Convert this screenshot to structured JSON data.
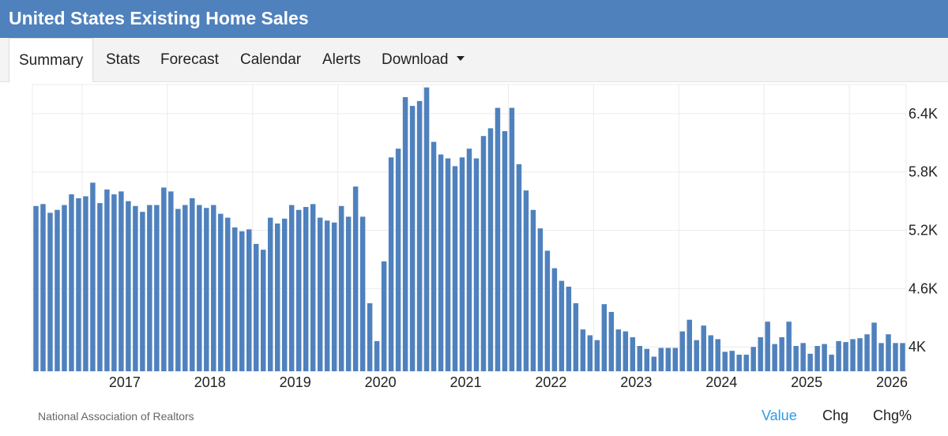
{
  "title": "United States Existing Home Sales",
  "tabs": [
    {
      "label": "Summary",
      "active": true
    },
    {
      "label": "Stats"
    },
    {
      "label": "Forecast"
    },
    {
      "label": "Calendar"
    },
    {
      "label": "Alerts"
    },
    {
      "label": "Download",
      "dropdown": true
    }
  ],
  "source": "National Association of Realtors",
  "toggles": {
    "value": "Value",
    "chg": "Chg",
    "chg_pct": "Chg%",
    "active": "value"
  },
  "colors": {
    "header": "#4f81bd",
    "bar": "#4f81bd",
    "accent": "#2c9be6"
  },
  "chart_data": {
    "type": "bar",
    "frequency": "monthly",
    "start": "2016-06",
    "y_tick_labels": [
      "4K",
      "4.6K",
      "5.2K",
      "5.8K",
      "6.4K"
    ],
    "y_ticks": [
      4000,
      4600,
      5200,
      5800,
      6400
    ],
    "ylim": [
      3750,
      6700
    ],
    "x_tick_labels": [
      "2017",
      "2018",
      "2019",
      "2020",
      "2021",
      "2022",
      "2023",
      "2024",
      "2025",
      "2026"
    ],
    "y_axis_side": "right",
    "grid": true,
    "values": [
      5450,
      5470,
      5380,
      5410,
      5460,
      5570,
      5530,
      5550,
      5690,
      5480,
      5620,
      5570,
      5600,
      5500,
      5450,
      5390,
      5460,
      5460,
      5640,
      5600,
      5420,
      5460,
      5530,
      5460,
      5430,
      5460,
      5370,
      5330,
      5230,
      5190,
      5210,
      5060,
      5000,
      5330,
      5270,
      5320,
      5460,
      5410,
      5440,
      5470,
      5330,
      5300,
      5280,
      5450,
      5340,
      5650,
      5340,
      4450,
      4060,
      4880,
      5950,
      6040,
      6570,
      6480,
      6530,
      6670,
      6110,
      5980,
      5940,
      5860,
      5950,
      6040,
      5940,
      6170,
      6250,
      6460,
      6220,
      6460,
      5880,
      5610,
      5410,
      5220,
      4990,
      4810,
      4680,
      4620,
      4450,
      4180,
      4120,
      4070,
      4440,
      4360,
      4180,
      4160,
      4100,
      4010,
      3980,
      3900,
      3990,
      3990,
      3990,
      4160,
      4280,
      4070,
      4220,
      4120,
      4080,
      3950,
      3960,
      3920,
      3920,
      4000,
      4100,
      4260,
      4030,
      4100,
      4260,
      4010,
      4040,
      3930,
      4010,
      4030,
      3920,
      4060,
      4050,
      4080,
      4090,
      4130,
      4250,
      4040,
      4130,
      4040,
      4040
    ]
  }
}
